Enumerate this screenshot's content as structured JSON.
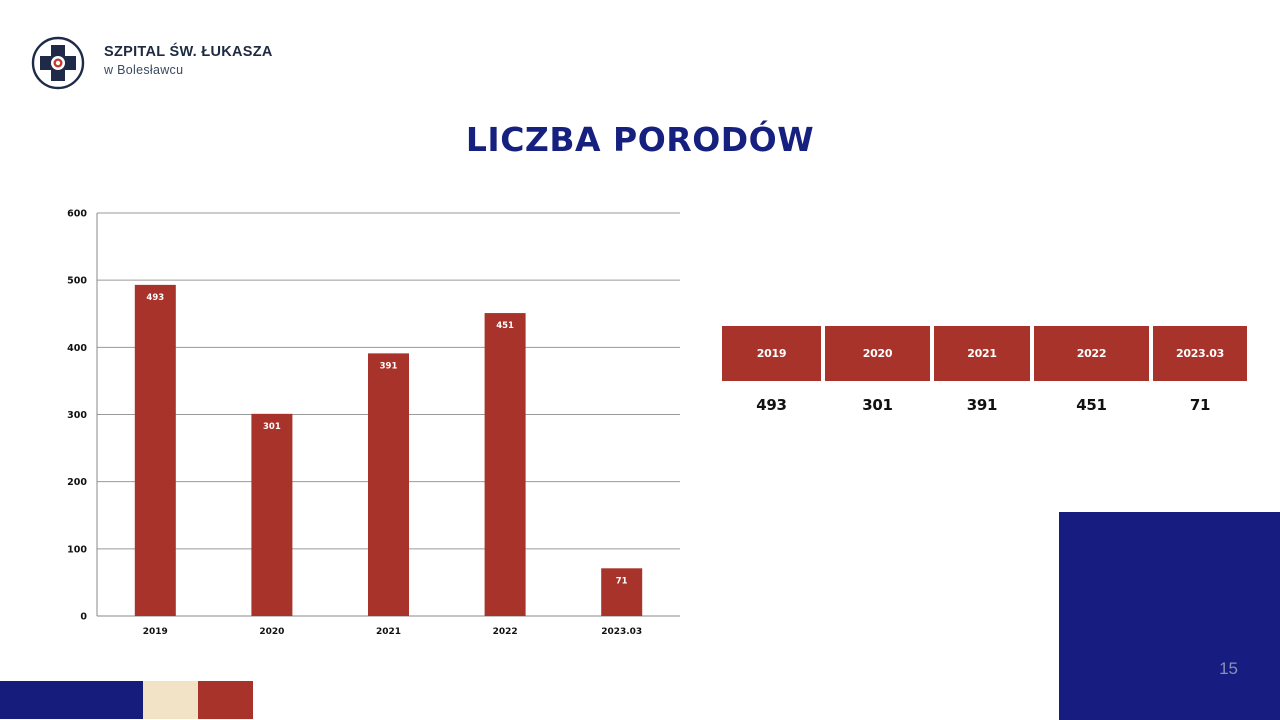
{
  "header": {
    "brand_name": "SZPITAL ŚW. ŁUKASZA",
    "brand_city": "w Bolesławcu"
  },
  "slide": {
    "title": "LICZBA PORODÓW",
    "page_number": "15"
  },
  "colors": {
    "bar": "#a7332a",
    "title": "#16207e",
    "navy": "#171c80",
    "cream": "#f2e3c6",
    "red": "#a7332a",
    "strip_navy": "#151c7c"
  },
  "chart_data": {
    "type": "bar",
    "title": "",
    "xlabel": "",
    "ylabel": "",
    "categories": [
      "2019",
      "2020",
      "2021",
      "2022",
      "2023.03"
    ],
    "values": [
      493,
      301,
      391,
      451,
      71
    ],
    "ylim": [
      0,
      600
    ],
    "yticks": [
      0,
      100,
      200,
      300,
      400,
      500,
      600
    ],
    "grid": true,
    "data_labels": true,
    "legend": "none"
  },
  "table": {
    "headers": [
      "2019",
      "2020",
      "2021",
      "2022",
      "2023.03"
    ],
    "values": [
      "493",
      "301",
      "391",
      "451",
      "71"
    ]
  }
}
